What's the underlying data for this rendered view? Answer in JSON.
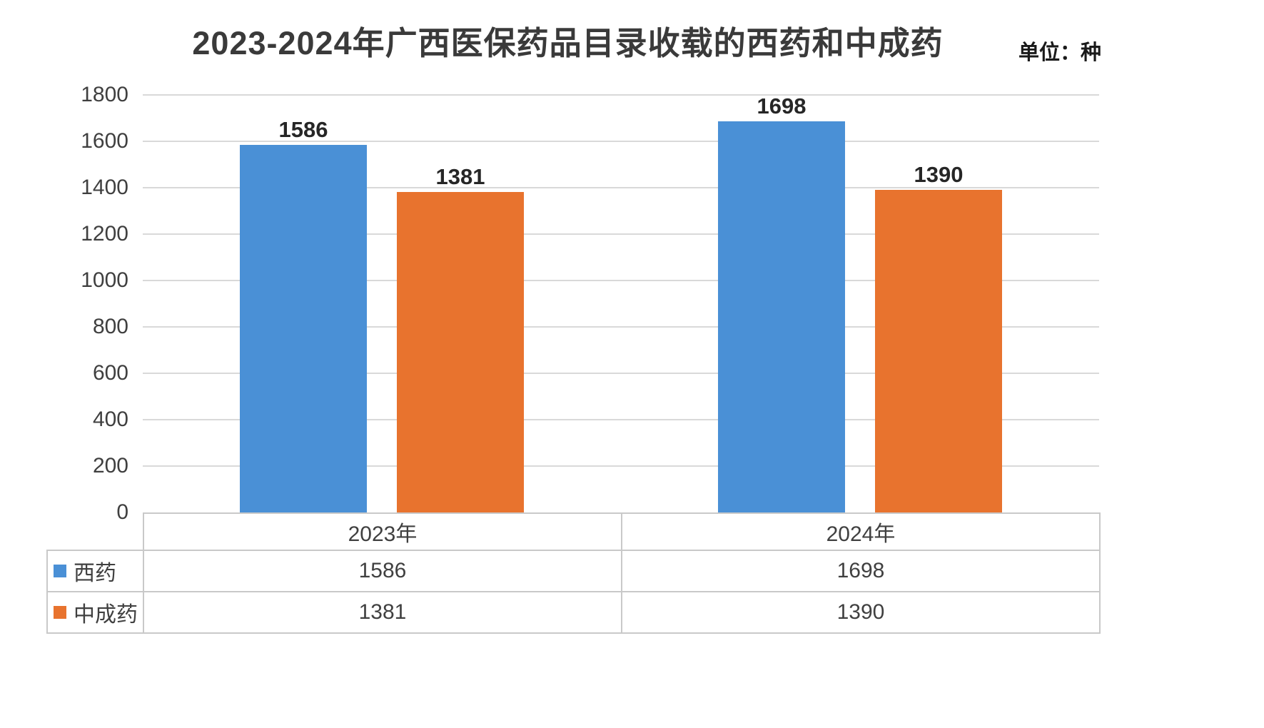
{
  "chart_data": {
    "type": "bar",
    "title": "2023-2024年广西医保药品目录收载的西药和中成药",
    "unit": "单位：种",
    "categories": [
      "2023年",
      "2024年"
    ],
    "series": [
      {
        "name": "西药",
        "color": "#4A90D6",
        "values": [
          1586,
          1698
        ]
      },
      {
        "name": "中成药",
        "color": "#E8732E",
        "values": [
          1381,
          1390
        ]
      }
    ],
    "ylim": [
      0,
      1800
    ],
    "yticks": [
      0,
      200,
      400,
      600,
      800,
      1000,
      1200,
      1400,
      1600,
      1800
    ],
    "grid": "horizontal",
    "legend_position": "table-left",
    "data_labels": true
  }
}
